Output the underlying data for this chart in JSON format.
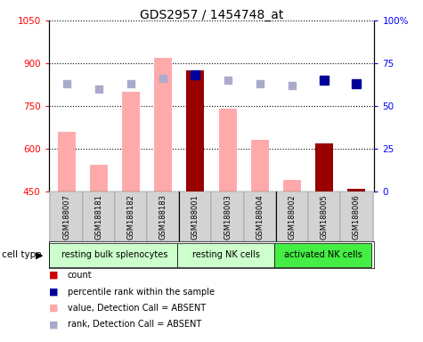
{
  "title": "GDS2957 / 1454748_at",
  "samples": [
    "GSM188007",
    "GSM188181",
    "GSM188182",
    "GSM188183",
    "GSM188001",
    "GSM188003",
    "GSM188004",
    "GSM188002",
    "GSM188005",
    "GSM188006"
  ],
  "absent_value_bars": [
    660,
    545,
    800,
    920,
    null,
    740,
    630,
    490,
    null,
    null
  ],
  "absent_rank_dots_pct": [
    63,
    60,
    63,
    66,
    null,
    65,
    63,
    62,
    null,
    null
  ],
  "present_value_bars": [
    null,
    null,
    null,
    null,
    875,
    null,
    null,
    null,
    620,
    460
  ],
  "present_rank_dots_pct": [
    null,
    null,
    null,
    null,
    68,
    null,
    null,
    null,
    65,
    63
  ],
  "ylim": [
    450,
    1050
  ],
  "yticks": [
    450,
    600,
    750,
    900,
    1050
  ],
  "right_yticks": [
    0,
    25,
    50,
    75,
    100
  ],
  "right_ylim": [
    0,
    100
  ],
  "bar_width": 0.55,
  "absent_bar_color": "#ffaaaa",
  "absent_dot_color": "#aaaacc",
  "present_bar_color": "#990000",
  "present_dot_color": "#000099",
  "plot_bg": "#ffffff",
  "sample_bg": "#d3d3d3",
  "group1_color": "#ccffcc",
  "group2_color": "#ccffcc",
  "group3_color": "#44ee44",
  "group_sep_indices": [
    3.5,
    6.5
  ],
  "group1_label": "resting bulk splenocytes",
  "group2_label": "resting NK cells",
  "group3_label": "activated NK cells",
  "cell_type_label": "cell type"
}
